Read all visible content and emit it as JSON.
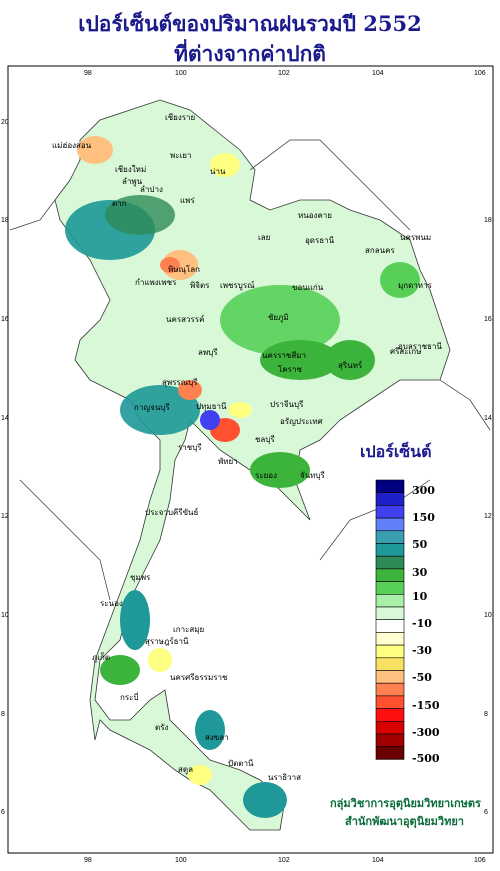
{
  "title_line1": "เปอร์เซ็นต์ของปริมาณฝนรวมปี 2552",
  "title_line2": "ที่ต่างจากค่าปกติ",
  "legend": {
    "title": "เปอร์เซ็นต์",
    "colors": [
      "#000080",
      "#2020c8",
      "#4040f0",
      "#6080f8",
      "#3aa0b0",
      "#1e9898",
      "#2e8b57",
      "#3cb43c",
      "#58d058",
      "#a8f0a8",
      "#d8f8d8",
      "#ffffff",
      "#ffffd0",
      "#ffff80",
      "#f8e060",
      "#ffc080",
      "#ff8050",
      "#ff5030",
      "#ff1010",
      "#d80000",
      "#a00000",
      "#6a0000"
    ],
    "labels": [
      "300",
      "150",
      "50",
      "30",
      "10",
      "-10",
      "-30",
      "-50",
      "-150",
      "-300",
      "-500"
    ]
  },
  "axes": {
    "lon_ticks": [
      "98",
      "100",
      "102",
      "104",
      "106"
    ],
    "lat_ticks": [
      "20",
      "18",
      "16",
      "14",
      "12",
      "10",
      "8",
      "6"
    ]
  },
  "provinces": [
    "แม่ฮ่องสอน",
    "เชียงราย",
    "เชียงใหม่",
    "น่าน",
    "พะเยา",
    "ลำพูน",
    "ลำปาง",
    "แพร่",
    "ตาก",
    "เลย",
    "หนองคาย",
    "นครพนม",
    "สกลนคร",
    "อุดรธานี",
    "มุกดาหาร",
    "พิษณุโลก",
    "กำแพงเพชร",
    "พิจิตร",
    "เพชรบูรณ์",
    "ขอนแก่น",
    "นครสวรรค์",
    "ชัยภูมิ",
    "อุบลราชธานี",
    "ลพบุรี",
    "นครราชสีมา",
    "โคราช",
    "สุรินทร์",
    "ศรีสะเกษ",
    "สุพรรณบุรี",
    "กาญจนบุรี",
    "ปทุมธานี",
    "ปราจีนบุรี",
    "อรัญประเทศ",
    "ราชบุรี",
    "ชลบุรี",
    "พัทยา",
    "ระยอง",
    "จันทบุรี",
    "ประจวบคีรีขันธ์",
    "ชุมพร",
    "ระนอง",
    "สุราษฎร์ธานี",
    "เกาะสมุย",
    "ภูเก็ต",
    "นครศรีธรรมราช",
    "กระบี่",
    "ตรัง",
    "สงขลา",
    "ปัตตานี",
    "นราธิวาส",
    "สตูล"
  ],
  "credit_line1": "กลุ่มวิชาการอุตุนิยมวิทยาเกษตร",
  "credit_line2": "สำนักพัฒนาอุตุนิยมวิทยา"
}
